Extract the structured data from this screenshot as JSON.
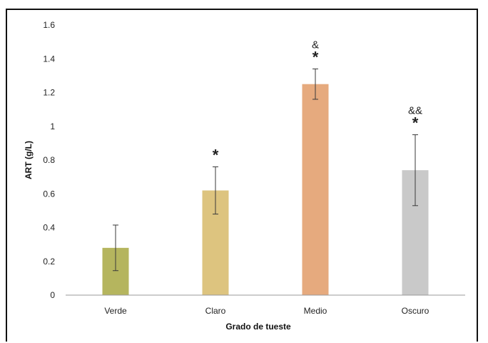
{
  "chart_data": {
    "type": "bar",
    "title": "",
    "xlabel": "Grado de tueste",
    "ylabel": "ART (g/L)",
    "ylim": [
      0,
      1.6
    ],
    "yticks": [
      0,
      0.2,
      0.4,
      0.6,
      0.8,
      1,
      1.2,
      1.4,
      1.6
    ],
    "ytick_labels": [
      "0",
      "0.2",
      "0.4",
      "0.6",
      "0.8",
      "1",
      "1.2",
      "1.4",
      "1.6"
    ],
    "grid": false,
    "categories": [
      "Verde",
      "Claro",
      "Medio",
      "Oscuro"
    ],
    "values": [
      0.28,
      0.62,
      1.25,
      0.74
    ],
    "error": [
      0.135,
      0.14,
      0.09,
      0.21
    ],
    "colors": [
      "#b5b55e",
      "#ddc47f",
      "#e6aa7e",
      "#c9c9c9"
    ],
    "markers": [
      {
        "star": "",
        "amp": ""
      },
      {
        "star": "*",
        "amp": ""
      },
      {
        "star": "*",
        "amp": "&"
      },
      {
        "star": "*",
        "amp": "&&"
      }
    ]
  }
}
